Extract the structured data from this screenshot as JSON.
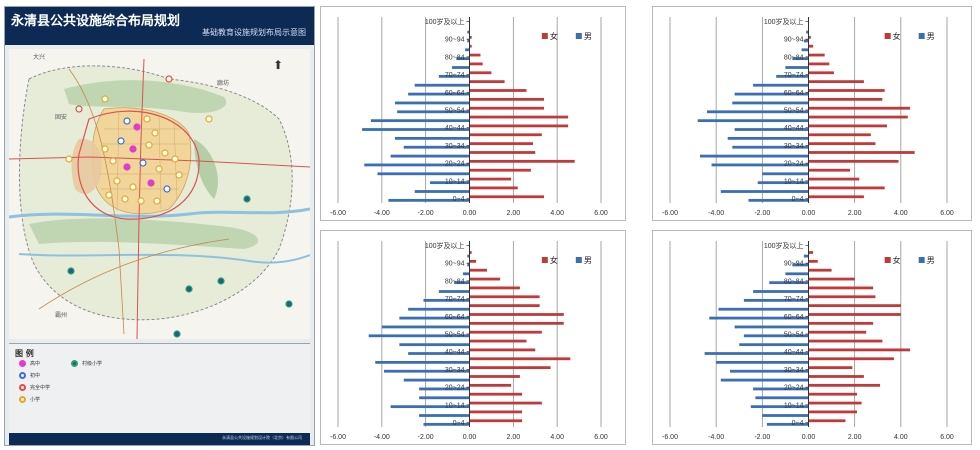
{
  "map": {
    "title": "永清县公共设施综合布局规划",
    "subtitle": "基础教育设施规划布局示意图",
    "legend_title": "图 例",
    "legend_items": [
      {
        "label": "高中",
        "color": "#e23bd0"
      },
      {
        "label": "初中",
        "color": "#3b6fd9"
      },
      {
        "label": "完全中学",
        "color": "#e64b3b"
      },
      {
        "label": "小学",
        "color": "#e6a81e"
      },
      {
        "label": "村级小学",
        "color": "#2aa06c"
      }
    ],
    "place_labels": [
      "大兴",
      "固安",
      "霸州",
      "廊坊"
    ],
    "credit": "永清县公共设施规划设计院（北京）有限公司"
  },
  "colors": {
    "female": "#c0393b",
    "male": "#3a6fb6",
    "grid": "#909090"
  },
  "chart_data": [
    {
      "type": "bar",
      "title": "",
      "legend": {
        "female": "女",
        "male": "男"
      },
      "categories": [
        "0~4",
        "5~9",
        "10~14",
        "15~19",
        "20~24",
        "25~29",
        "30~34",
        "35~39",
        "40~44",
        "45~49",
        "50~54",
        "55~59",
        "60~64",
        "65~69",
        "70~74",
        "75~79",
        "80~84",
        "85~89",
        "90~94",
        "95~99",
        "100岁及以上"
      ],
      "tick_labels": [
        "0~4",
        "10~14",
        "20~24",
        "30~34",
        "40~44",
        "50~54",
        "60~64",
        "70~74",
        "80~84",
        "90~94",
        "100岁及以上"
      ],
      "series": [
        {
          "name": "女",
          "values": [
            3.4,
            2.2,
            1.9,
            2.8,
            4.8,
            3.0,
            2.9,
            3.3,
            4.5,
            4.5,
            3.4,
            3.4,
            2.6,
            1.6,
            1.0,
            0.6,
            0.5,
            0.1,
            0.1,
            0.0,
            0.0
          ]
        },
        {
          "name": "男",
          "values": [
            -3.7,
            -2.5,
            -1.8,
            -4.2,
            -4.8,
            -3.6,
            -3.0,
            -3.4,
            -4.9,
            -4.5,
            -3.3,
            -3.4,
            -2.8,
            -2.5,
            -1.4,
            -0.8,
            -0.6,
            -0.2,
            -0.1,
            -0.1,
            0.0
          ]
        }
      ],
      "xlim": [
        -6,
        6
      ],
      "xticks": [
        "-6.00",
        "-4.00",
        "-2.00",
        "0.00",
        "2.00",
        "4.00",
        "6.00"
      ]
    },
    {
      "type": "bar",
      "title": "",
      "legend": {
        "female": "女",
        "male": "男"
      },
      "categories": [
        "0~4",
        "5~9",
        "10~14",
        "15~19",
        "20~24",
        "25~29",
        "30~34",
        "35~39",
        "40~44",
        "45~49",
        "50~54",
        "55~59",
        "60~64",
        "65~69",
        "70~74",
        "75~79",
        "80~84",
        "85~89",
        "90~94",
        "95~99",
        "100岁及以上"
      ],
      "tick_labels": [
        "0~4",
        "10~14",
        "20~24",
        "30~34",
        "40~44",
        "50~54",
        "60~64",
        "70~74",
        "80~84",
        "90~94",
        "100岁及以上"
      ],
      "series": [
        {
          "name": "女",
          "values": [
            2.4,
            3.3,
            2.2,
            1.8,
            3.9,
            4.6,
            2.9,
            2.7,
            3.4,
            4.3,
            4.4,
            3.2,
            3.3,
            2.4,
            1.1,
            0.9,
            0.7,
            0.2,
            0.1,
            0.0,
            0.0
          ]
        },
        {
          "name": "男",
          "values": [
            -2.6,
            -3.8,
            -2.2,
            -2.0,
            -4.2,
            -4.7,
            -3.3,
            -3.5,
            -3.2,
            -4.8,
            -4.4,
            -3.3,
            -3.2,
            -2.4,
            -1.4,
            -1.0,
            -0.7,
            -0.3,
            -0.2,
            -0.1,
            0.0
          ]
        }
      ],
      "xlim": [
        -6,
        6
      ],
      "xticks": [
        "-6.00",
        "-4.00",
        "-2.00",
        "0.00",
        "2.00",
        "4.00",
        "6.00"
      ]
    },
    {
      "type": "bar",
      "title": "",
      "legend": {
        "female": "女",
        "male": "男"
      },
      "categories": [
        "0~4",
        "5~9",
        "10~14",
        "15~19",
        "20~24",
        "25~29",
        "30~34",
        "35~39",
        "40~44",
        "45~49",
        "50~54",
        "55~59",
        "60~64",
        "65~69",
        "70~74",
        "75~79",
        "80~84",
        "85~89",
        "90~94",
        "95~99",
        "100岁及以上"
      ],
      "tick_labels": [
        "0~4",
        "10~14",
        "20~24",
        "30~34",
        "40~44",
        "50~54",
        "60~64",
        "70~74",
        "80~84",
        "90~94",
        "100岁及以上"
      ],
      "series": [
        {
          "name": "女",
          "values": [
            2.4,
            2.4,
            3.3,
            2.4,
            1.9,
            2.3,
            3.7,
            4.6,
            3.0,
            2.6,
            3.3,
            4.3,
            4.3,
            3.2,
            3.2,
            2.3,
            1.4,
            0.8,
            0.3,
            0.1,
            0.0
          ]
        },
        {
          "name": "男",
          "values": [
            -2.1,
            -2.3,
            -3.6,
            -2.3,
            -2.3,
            -3.0,
            -3.9,
            -4.3,
            -2.8,
            -3.2,
            -4.6,
            -4.0,
            -3.2,
            -2.8,
            -2.1,
            -1.4,
            -0.7,
            -0.3,
            -0.1,
            -0.1,
            0.0
          ]
        }
      ],
      "xlim": [
        -6,
        6
      ],
      "xticks": [
        "-6.00",
        "-4.00",
        "-2.00",
        "0.00",
        "2.00",
        "4.00",
        "6.00"
      ]
    },
    {
      "type": "bar",
      "title": "",
      "legend": {
        "female": "女",
        "male": "男"
      },
      "categories": [
        "0~4",
        "5~9",
        "10~14",
        "15~19",
        "20~24",
        "25~29",
        "30~34",
        "35~39",
        "40~44",
        "45~49",
        "50~54",
        "55~59",
        "60~64",
        "65~69",
        "70~74",
        "75~79",
        "80~84",
        "85~89",
        "90~94",
        "95~99",
        "100岁及以上"
      ],
      "tick_labels": [
        "0~4",
        "10~14",
        "20~24",
        "30~34",
        "40~44",
        "50~54",
        "60~64",
        "70~74",
        "80~84",
        "90~94",
        "100岁及以上"
      ],
      "series": [
        {
          "name": "女",
          "values": [
            1.6,
            2.1,
            2.3,
            2.1,
            3.1,
            2.4,
            1.9,
            3.7,
            4.4,
            3.2,
            2.5,
            2.8,
            4.0,
            4.0,
            2.9,
            2.8,
            2.0,
            1.0,
            0.4,
            0.2,
            0.0
          ]
        },
        {
          "name": "男",
          "values": [
            -1.8,
            -2.0,
            -2.5,
            -2.3,
            -2.4,
            -3.8,
            -3.4,
            -4.0,
            -4.5,
            -3.0,
            -2.8,
            -3.2,
            -4.3,
            -3.9,
            -2.8,
            -2.4,
            -1.7,
            -1.0,
            -0.7,
            -0.2,
            0.0
          ]
        }
      ],
      "xlim": [
        -6,
        6
      ],
      "xticks": [
        "-6.00",
        "-4.00",
        "-2.00",
        "0.00",
        "2.00",
        "4.00",
        "6.00"
      ]
    }
  ]
}
